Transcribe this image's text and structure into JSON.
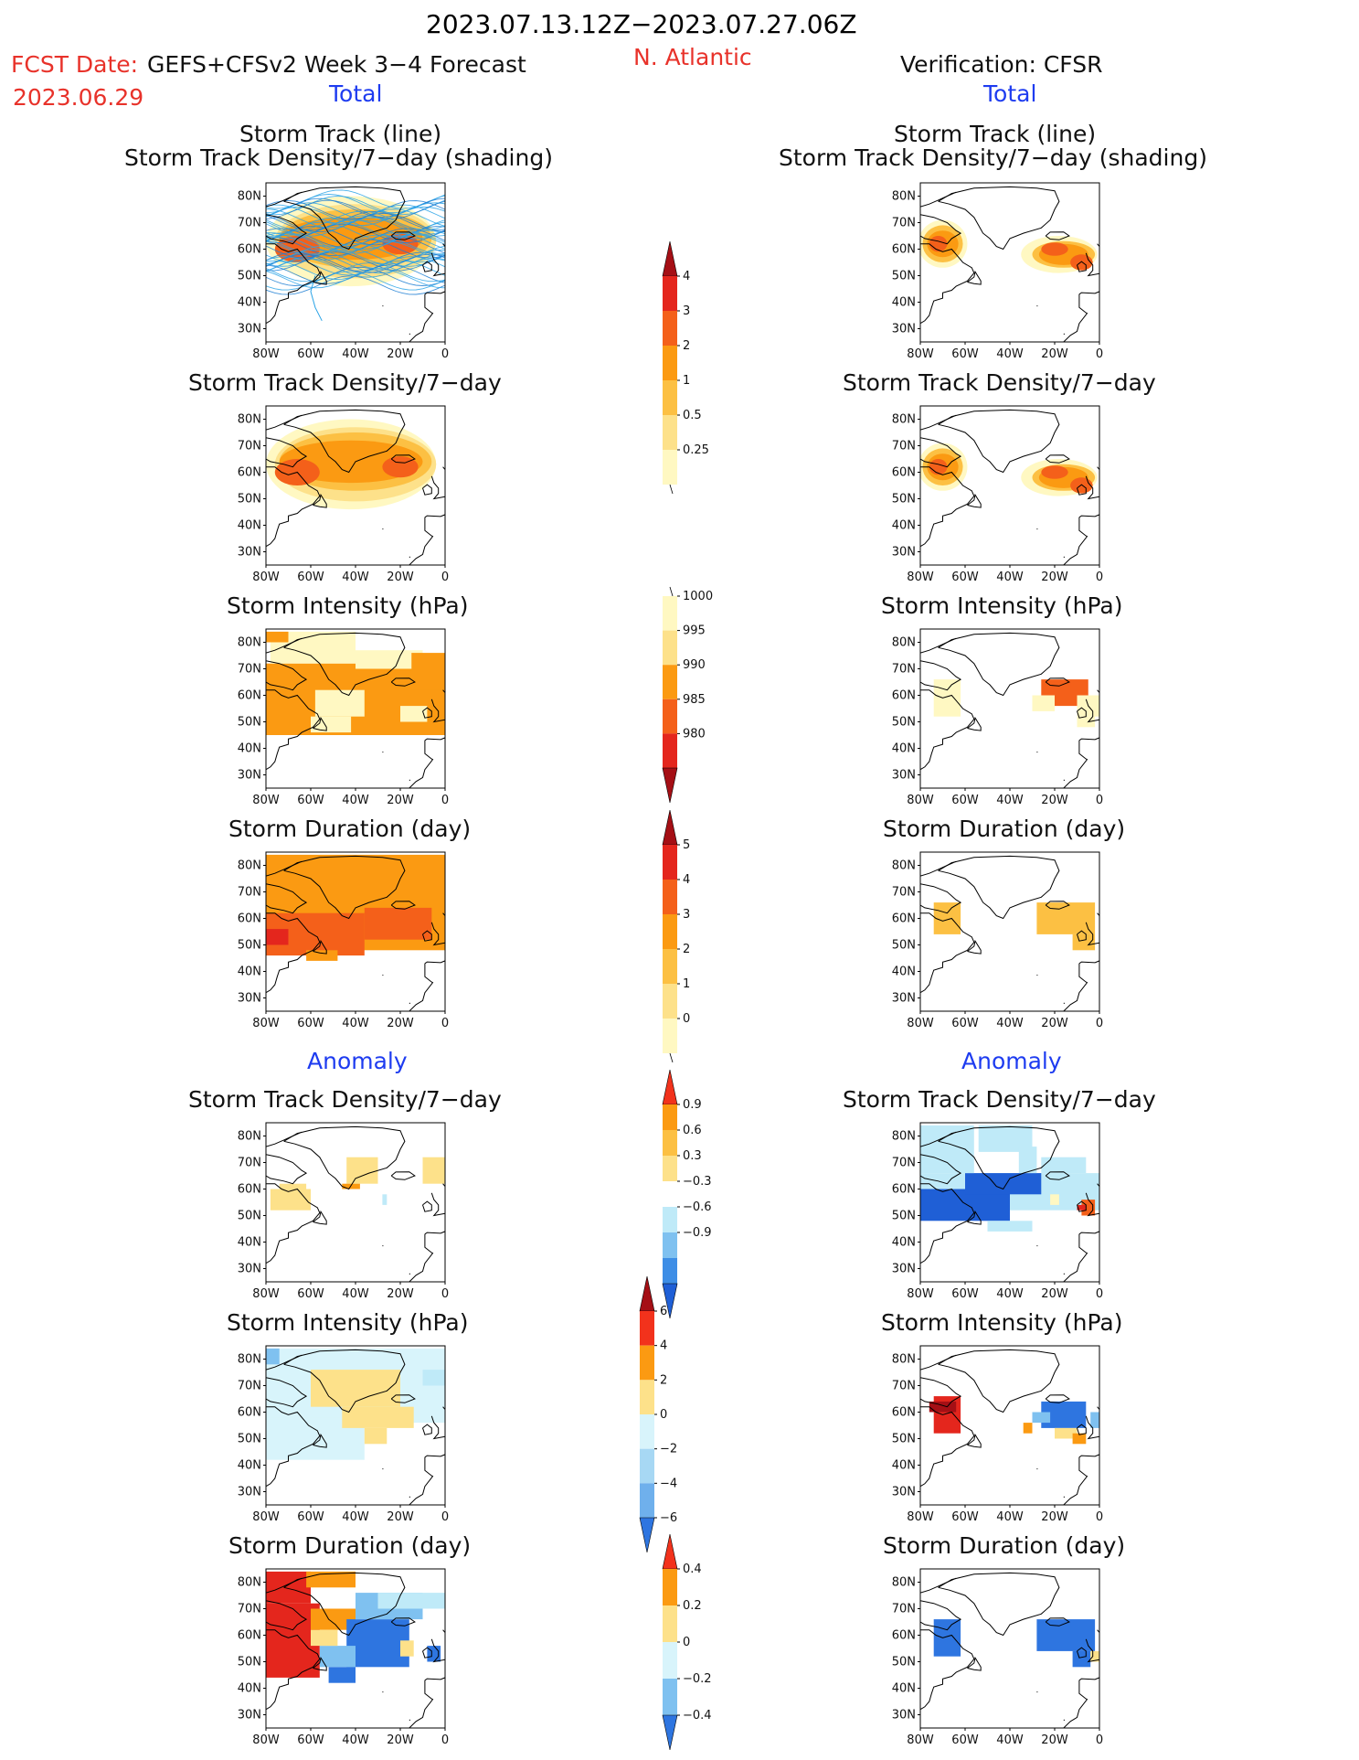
{
  "header": {
    "period": "2023.07.13.12Z−2023.07.27.06Z",
    "fcst_date_label": "FCST Date:",
    "fcst_date": "2023.06.29",
    "model": "GEFS+CFSv2 Week 3−4 Forecast",
    "region": "N. Atlantic",
    "verification": "Verification: CFSR",
    "total_left": "Total",
    "total_right": "Total",
    "anomaly_left": "Anomaly",
    "anomaly_right": "Anomaly"
  },
  "panel_titles": {
    "track_line": "Storm Track (line)",
    "track_shading": "Storm Track Density/7−day (shading)",
    "density": "Storm Track Density/7−day",
    "intensity": "Storm Intensity (hPa)",
    "duration": "Storm Duration (day)"
  },
  "axes": {
    "lat_labels": [
      "80N",
      "70N",
      "60N",
      "50N",
      "40N",
      "30N"
    ],
    "lon_labels": [
      "80W",
      "60W",
      "40W",
      "20W",
      "0"
    ]
  },
  "colorbars": {
    "density_total": {
      "labels": [
        "4",
        "3",
        "2",
        "1",
        "0.5",
        "0.25"
      ],
      "colors": [
        "#a50f15",
        "#e4261d",
        "#f4601a",
        "#fb9a12",
        "#fcc043",
        "#fde18a",
        "#fff8c2"
      ]
    },
    "intensity_total": {
      "labels": [
        "1000",
        "995",
        "990",
        "985",
        "980"
      ],
      "colors": [
        "#fff8c2",
        "#fde18a",
        "#fb9a12",
        "#f4601a",
        "#e4261d",
        "#a50f15"
      ]
    },
    "duration_total": {
      "labels": [
        "5",
        "4",
        "3",
        "2",
        "1",
        "0"
      ],
      "colors": [
        "#a50f15",
        "#e4261d",
        "#f4601a",
        "#fb9a12",
        "#fcc043",
        "#fde18a",
        "#fff8c2"
      ]
    },
    "density_anom": {
      "labels": [
        "0.9",
        "0.6",
        "0.3",
        "−0.3",
        "−0.6",
        "−0.9"
      ],
      "colors": [
        "#f2321c",
        "#fb9a12",
        "#fcc043",
        "#fde18a",
        "#ffffff",
        "#bfeaf8",
        "#7fc1f0",
        "#3e8ee6",
        "#1f5fd6"
      ]
    },
    "intensity_anom": {
      "labels": [
        "6",
        "4",
        "2",
        "0",
        "−2",
        "−4",
        "−6"
      ],
      "colors": [
        "#a50f15",
        "#f2321c",
        "#fb9a12",
        "#fde18a",
        "#d8f4fb",
        "#a7d8f4",
        "#6fb0ec",
        "#2e75e0"
      ]
    },
    "duration_anom": {
      "labels": [
        "0.4",
        "0.2",
        "0",
        "−0.2",
        "−0.4"
      ],
      "colors": [
        "#f2321c",
        "#fb9a12",
        "#fde18a",
        "#d8f4fb",
        "#7fc1f0",
        "#2e75e0"
      ]
    }
  }
}
